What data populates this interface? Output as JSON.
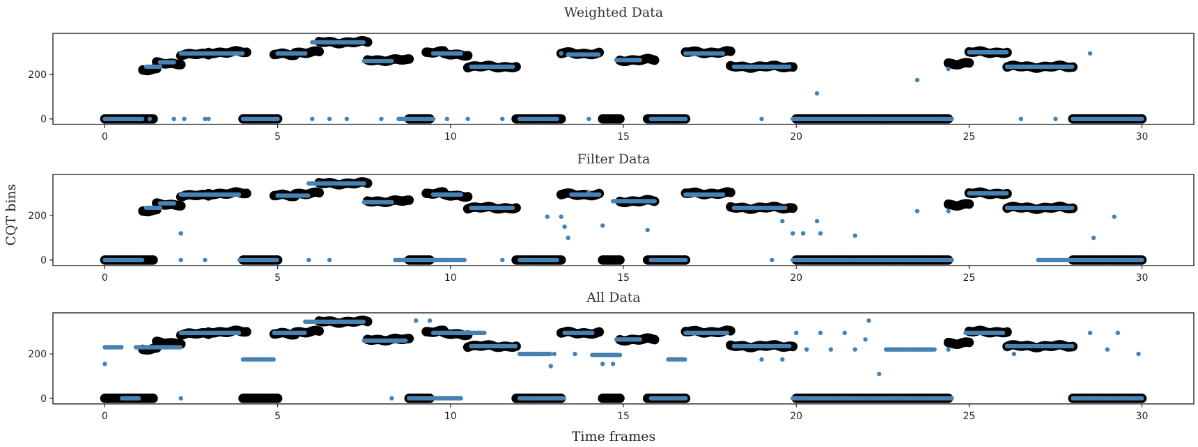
{
  "figure": {
    "ylabel": "CQT bins",
    "xlabel": "Time frames"
  },
  "colors": {
    "reference": "#000000",
    "estimate": "#4682b4",
    "frame": "#000000"
  },
  "chart_data": [
    {
      "type": "scatter",
      "title": "Weighted Data",
      "xlim": [
        -1.5,
        31.5
      ],
      "ylim": [
        -25,
        385
      ],
      "xticks": [
        0,
        5,
        10,
        15,
        20,
        25,
        30
      ],
      "yticks": [
        0,
        200
      ],
      "reference_segments": [
        [
          0,
          1.4,
          0
        ],
        [
          1.1,
          1.5,
          220
        ],
        [
          1.5,
          2.2,
          250
        ],
        [
          2.2,
          3.0,
          290
        ],
        [
          3.0,
          4.1,
          300
        ],
        [
          4.0,
          5.0,
          0
        ],
        [
          4.9,
          5.5,
          290
        ],
        [
          5.5,
          6.2,
          300
        ],
        [
          6.2,
          7.6,
          345
        ],
        [
          7.6,
          8.8,
          265
        ],
        [
          8.8,
          9.4,
          0
        ],
        [
          9.3,
          9.8,
          300
        ],
        [
          9.8,
          10.5,
          290
        ],
        [
          10.5,
          11.9,
          235
        ],
        [
          11.9,
          13.2,
          0
        ],
        [
          13.2,
          14.3,
          295
        ],
        [
          14.4,
          14.9,
          0
        ],
        [
          14.9,
          15.9,
          265
        ],
        [
          15.7,
          16.8,
          0
        ],
        [
          16.8,
          18.1,
          300
        ],
        [
          18.1,
          19.9,
          235
        ],
        [
          20.0,
          24.4,
          0
        ],
        [
          24.4,
          25.0,
          250
        ],
        [
          25.0,
          26.1,
          300
        ],
        [
          26.1,
          28.0,
          235
        ],
        [
          28.0,
          30.0,
          0
        ]
      ],
      "series": [
        {
          "name": "",
          "segments": [
            [
              0,
              1.1,
              0
            ],
            [
              1.2,
              1.6,
              235
            ],
            [
              1.6,
              2.0,
              255
            ],
            [
              2.2,
              3.5,
              295
            ],
            [
              3.5,
              4.0,
              295
            ],
            [
              4.0,
              5.0,
              0
            ],
            [
              5.0,
              5.8,
              295
            ],
            [
              6.0,
              7.5,
              345
            ],
            [
              7.5,
              8.3,
              260
            ],
            [
              8.5,
              9.5,
              0
            ],
            [
              9.5,
              10.3,
              295
            ],
            [
              10.6,
              11.8,
              235
            ],
            [
              12.0,
              13.1,
              0
            ],
            [
              13.4,
              14.3,
              290
            ],
            [
              14.8,
              15.5,
              265
            ],
            [
              15.8,
              16.8,
              0
            ],
            [
              16.8,
              17.9,
              295
            ],
            [
              18.2,
              19.8,
              235
            ],
            [
              19.9,
              24.5,
              0
            ],
            [
              25.0,
              26.1,
              300
            ],
            [
              26.1,
              28.0,
              235
            ],
            [
              28.0,
              30.0,
              0
            ]
          ],
          "points": [
            [
              1.3,
              0
            ],
            [
              2.0,
              0
            ],
            [
              2.3,
              0
            ],
            [
              2.9,
              0
            ],
            [
              3.0,
              0
            ],
            [
              6.0,
              0
            ],
            [
              6.5,
              0
            ],
            [
              7.0,
              0
            ],
            [
              8.0,
              0
            ],
            [
              9.9,
              0
            ],
            [
              10.5,
              0
            ],
            [
              11.5,
              0
            ],
            [
              13.2,
              295
            ],
            [
              14.0,
              0
            ],
            [
              19.0,
              0
            ],
            [
              20.6,
              115
            ],
            [
              23.5,
              175
            ],
            [
              24.4,
              225
            ],
            [
              26.5,
              0
            ],
            [
              27.5,
              0
            ],
            [
              28.5,
              295
            ]
          ]
        }
      ]
    },
    {
      "type": "scatter",
      "title": "Filter Data",
      "xlim": [
        -1.5,
        31.5
      ],
      "ylim": [
        -25,
        385
      ],
      "xticks": [
        0,
        5,
        10,
        15,
        20,
        25,
        30
      ],
      "yticks": [
        0,
        200
      ],
      "reference_segments": [
        [
          0,
          1.4,
          0
        ],
        [
          1.1,
          1.5,
          220
        ],
        [
          1.5,
          2.2,
          250
        ],
        [
          2.2,
          3.0,
          290
        ],
        [
          3.0,
          4.1,
          300
        ],
        [
          4.0,
          5.0,
          0
        ],
        [
          4.9,
          5.5,
          290
        ],
        [
          5.5,
          6.2,
          300
        ],
        [
          6.2,
          7.6,
          345
        ],
        [
          7.6,
          8.8,
          265
        ],
        [
          8.8,
          9.4,
          0
        ],
        [
          9.3,
          9.8,
          300
        ],
        [
          9.8,
          10.5,
          290
        ],
        [
          10.5,
          11.9,
          235
        ],
        [
          11.9,
          13.2,
          0
        ],
        [
          13.2,
          14.3,
          295
        ],
        [
          14.4,
          14.9,
          0
        ],
        [
          14.9,
          15.9,
          265
        ],
        [
          15.7,
          16.8,
          0
        ],
        [
          16.8,
          18.1,
          300
        ],
        [
          18.1,
          19.9,
          235
        ],
        [
          20.0,
          24.4,
          0
        ],
        [
          24.4,
          25.0,
          250
        ],
        [
          25.0,
          26.1,
          300
        ],
        [
          26.1,
          28.0,
          235
        ],
        [
          28.0,
          30.0,
          0
        ]
      ],
      "series": [
        {
          "name": "",
          "segments": [
            [
              0,
              1.1,
              0
            ],
            [
              1.2,
              1.6,
              235
            ],
            [
              1.6,
              2.0,
              255
            ],
            [
              2.2,
              3.9,
              295
            ],
            [
              3.9,
              5.0,
              0
            ],
            [
              5.0,
              5.9,
              290
            ],
            [
              5.9,
              7.5,
              345
            ],
            [
              7.5,
              8.3,
              260
            ],
            [
              8.4,
              9.6,
              0
            ],
            [
              9.6,
              10.4,
              0
            ],
            [
              9.5,
              10.3,
              295
            ],
            [
              10.6,
              11.8,
              235
            ],
            [
              12.0,
              13.1,
              0
            ],
            [
              13.5,
              14.3,
              295
            ],
            [
              14.7,
              15.9,
              265
            ],
            [
              15.8,
              16.8,
              0
            ],
            [
              16.8,
              17.9,
              295
            ],
            [
              18.2,
              19.7,
              235
            ],
            [
              19.9,
              24.5,
              0
            ],
            [
              25.0,
              26.1,
              300
            ],
            [
              26.1,
              28.0,
              235
            ],
            [
              27.0,
              30.0,
              0
            ]
          ],
          "points": [
            [
              2.2,
              120
            ],
            [
              2.2,
              0
            ],
            [
              2.9,
              0
            ],
            [
              5.9,
              0
            ],
            [
              6.5,
              0
            ],
            [
              8.5,
              0
            ],
            [
              11.5,
              0
            ],
            [
              12.8,
              195
            ],
            [
              13.2,
              195
            ],
            [
              13.3,
              150
            ],
            [
              13.4,
              100
            ],
            [
              14.4,
              155
            ],
            [
              14.0,
              305
            ],
            [
              15.7,
              135
            ],
            [
              19.3,
              0
            ],
            [
              19.6,
              175
            ],
            [
              19.9,
              120
            ],
            [
              20.2,
              120
            ],
            [
              20.6,
              175
            ],
            [
              20.7,
              120
            ],
            [
              21.7,
              110
            ],
            [
              23.5,
              220
            ],
            [
              24.4,
              220
            ],
            [
              28.6,
              100
            ],
            [
              29.2,
              195
            ]
          ]
        }
      ]
    },
    {
      "type": "scatter",
      "title": "All Data",
      "xlim": [
        -1.5,
        31.5
      ],
      "ylim": [
        -25,
        385
      ],
      "xticks": [
        0,
        5,
        10,
        15,
        20,
        25,
        30
      ],
      "yticks": [
        0,
        200
      ],
      "reference_segments": [
        [
          0,
          1.4,
          0
        ],
        [
          1.1,
          1.5,
          220
        ],
        [
          1.5,
          2.2,
          250
        ],
        [
          2.2,
          3.0,
          290
        ],
        [
          3.0,
          4.1,
          300
        ],
        [
          4.0,
          5.0,
          0
        ],
        [
          4.9,
          5.5,
          290
        ],
        [
          5.5,
          6.2,
          300
        ],
        [
          6.2,
          7.6,
          345
        ],
        [
          7.6,
          8.8,
          265
        ],
        [
          8.8,
          9.4,
          0
        ],
        [
          9.3,
          9.8,
          300
        ],
        [
          9.8,
          10.5,
          290
        ],
        [
          10.5,
          11.9,
          235
        ],
        [
          11.9,
          13.2,
          0
        ],
        [
          13.2,
          14.3,
          295
        ],
        [
          14.4,
          14.9,
          0
        ],
        [
          14.9,
          15.9,
          265
        ],
        [
          15.7,
          16.8,
          0
        ],
        [
          16.8,
          18.1,
          300
        ],
        [
          18.1,
          19.9,
          235
        ],
        [
          20.0,
          24.4,
          0
        ],
        [
          24.4,
          25.0,
          250
        ],
        [
          25.0,
          26.1,
          300
        ],
        [
          26.1,
          28.0,
          235
        ],
        [
          28.0,
          30.0,
          0
        ]
      ],
      "series": [
        {
          "name": "",
          "segments": [
            [
              0,
              0.5,
              230
            ],
            [
              0.5,
              1.0,
              0
            ],
            [
              0.9,
              2.2,
              230
            ],
            [
              2.2,
              3.9,
              295
            ],
            [
              4.0,
              4.9,
              175
            ],
            [
              4.9,
              5.8,
              295
            ],
            [
              5.8,
              7.5,
              345
            ],
            [
              7.5,
              8.7,
              260
            ],
            [
              8.8,
              9.7,
              0
            ],
            [
              9.7,
              10.3,
              0
            ],
            [
              9.5,
              11.0,
              295
            ],
            [
              10.6,
              11.9,
              235
            ],
            [
              12.0,
              13.3,
              0
            ],
            [
              12.0,
              12.9,
              200
            ],
            [
              13.3,
              14.1,
              295
            ],
            [
              14.1,
              14.9,
              195
            ],
            [
              14.8,
              15.5,
              265
            ],
            [
              15.8,
              16.8,
              0
            ],
            [
              16.3,
              16.8,
              175
            ],
            [
              16.8,
              18.0,
              295
            ],
            [
              18.2,
              19.8,
              235
            ],
            [
              19.9,
              24.5,
              0
            ],
            [
              22.6,
              24.0,
              220
            ],
            [
              24.9,
              26.0,
              295
            ],
            [
              26.1,
              28.0,
              235
            ],
            [
              28.0,
              30.0,
              0
            ]
          ],
          "points": [
            [
              0,
              155
            ],
            [
              2.2,
              0
            ],
            [
              8.3,
              0
            ],
            [
              9.0,
              350
            ],
            [
              9.4,
              350
            ],
            [
              12.9,
              145
            ],
            [
              13.0,
              200
            ],
            [
              13.6,
              200
            ],
            [
              14.7,
              155
            ],
            [
              14.4,
              155
            ],
            [
              14.6,
              195
            ],
            [
              19.0,
              175
            ],
            [
              19.6,
              175
            ],
            [
              20.0,
              295
            ],
            [
              20.3,
              220
            ],
            [
              20.7,
              295
            ],
            [
              21.0,
              220
            ],
            [
              21.4,
              295
            ],
            [
              21.7,
              220
            ],
            [
              22.0,
              265
            ],
            [
              22.1,
              350
            ],
            [
              22.4,
              110
            ],
            [
              24.4,
              220
            ],
            [
              26.3,
              200
            ],
            [
              28.5,
              295
            ],
            [
              29.0,
              220
            ],
            [
              29.3,
              295
            ],
            [
              29.9,
              200
            ]
          ]
        }
      ]
    }
  ]
}
